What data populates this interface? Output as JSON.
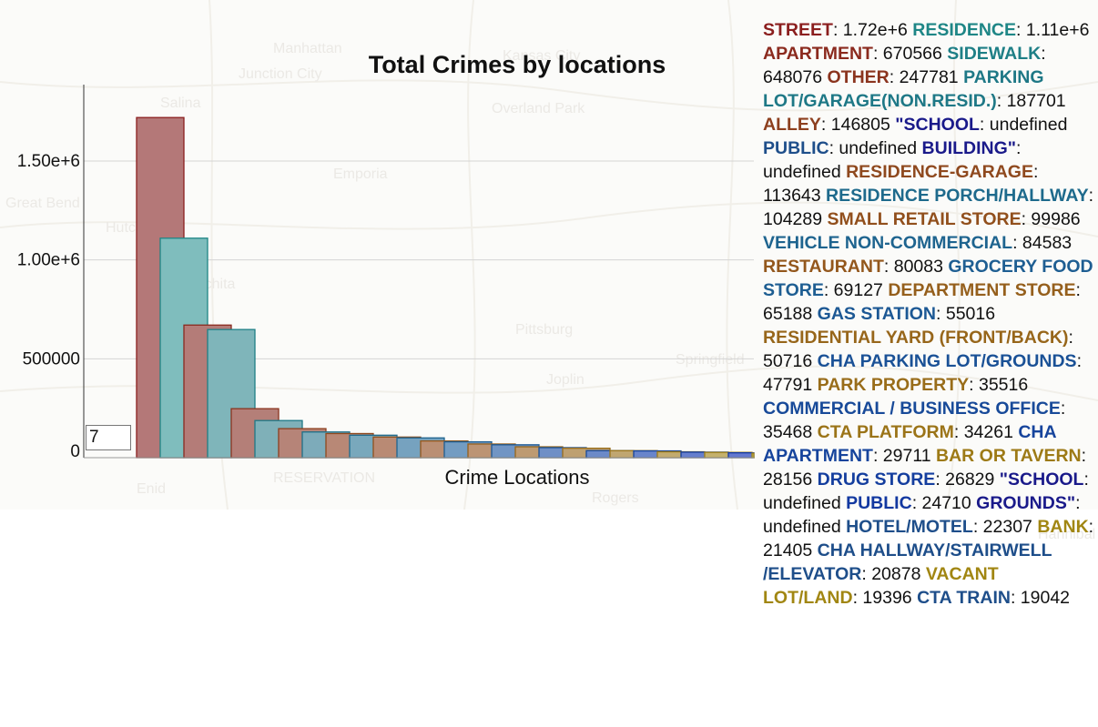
{
  "map_labels": [
    "Manhattan",
    "Junction City",
    "Salina",
    "Overland Park",
    "Kansas City",
    "Emporia",
    "Great Bend",
    "Hutchinson",
    "Wichita",
    "Pittsburg",
    "Springfield",
    "Joplin",
    "RESERVATION",
    "Enid",
    "Rogers",
    "Hannibal"
  ],
  "chart_data": {
    "type": "bar",
    "title": "Total Crimes by locations",
    "xlabel": "Crime Locations",
    "ylabel": "",
    "ylim": [
      0,
      1900000
    ],
    "y_ticks": [
      {
        "value": 0,
        "label": "0"
      },
      {
        "value": 500000,
        "label": "500000"
      },
      {
        "value": 1000000,
        "label": "1.00e+6"
      },
      {
        "value": 1500000,
        "label": "1.50e+6"
      }
    ],
    "grid": true,
    "values": [
      1720000,
      1110000,
      670566,
      648076,
      247781,
      187701,
      146805,
      130000,
      122000,
      113643,
      104289,
      99986,
      84583,
      80083,
      69127,
      65188,
      55016,
      50716,
      47791,
      35516,
      35468,
      34261,
      29711,
      28156,
      26829,
      24710,
      22307
    ],
    "colors": [
      "#b47878",
      "#7fbdbd",
      "#b47c78",
      "#7fb5ba",
      "#b47f78",
      "#7fb0b8",
      "#b68478",
      "#7dabba",
      "#b88876",
      "#79a8bc",
      "#b98a74",
      "#76a2bf",
      "#ba8f74",
      "#739cc2",
      "#bc9474",
      "#7195c4",
      "#bd9a72",
      "#6f8fc6",
      "#bea071",
      "#6c8ac8",
      "#c0a671",
      "#6985cb",
      "#c2ab6f",
      "#667fcd",
      "#c4b16d",
      "#6378cf",
      "#c6b66b"
    ],
    "stroke_colors": [
      "#8b1e1e",
      "#1e8686",
      "#8b2a1e",
      "#1e7f86",
      "#8b341e",
      "#1e7886",
      "#8d3f1e",
      "#1e6f88",
      "#8f491e",
      "#1e6a8c",
      "#914f1c",
      "#1e648f",
      "#93571c",
      "#1e5e92",
      "#955f1c",
      "#1c5894",
      "#97661a",
      "#1a5196",
      "#996d1a",
      "#184a99",
      "#9b7418",
      "#16449c",
      "#9d7a16",
      "#143e9e",
      "#9f8014",
      "#1238a0",
      "#a18612"
    ]
  },
  "bin_input_value": "7",
  "legend": [
    {
      "name": "STREET",
      "value": "1.72e+6",
      "color": "#8b1e1e"
    },
    {
      "name": "RESIDENCE",
      "value": "1.11e+6",
      "color": "#1e8686"
    },
    {
      "name": "APARTMENT",
      "value": "670566",
      "color": "#8b2a1e"
    },
    {
      "name": "SIDEWALK",
      "value": "648076",
      "color": "#1e7f86"
    },
    {
      "name": "OTHER",
      "value": "247781",
      "color": "#8b341e"
    },
    {
      "name": "PARKING LOT/GARAGE(NON.RESID.)",
      "value": "187701",
      "color": "#1e7886"
    },
    {
      "name": "ALLEY",
      "value": "146805",
      "color": "#8d3f1e"
    },
    {
      "name": "\"SCHOOL",
      "value": "undefined",
      "color": "#1a1a8a"
    },
    {
      "name": "PUBLIC",
      "value": "undefined",
      "color": "#1e4e8a"
    },
    {
      "name": "BUILDING\"",
      "value": "undefined",
      "color": "#1a1a8a"
    },
    {
      "name": "RESIDENCE-GARAGE",
      "value": "113643",
      "color": "#8f491e"
    },
    {
      "name": "RESIDENCE PORCH/HALLWAY",
      "value": "104289",
      "color": "#1e6a8c"
    },
    {
      "name": "SMALL RETAIL STORE",
      "value": "99986",
      "color": "#914f1c"
    },
    {
      "name": "VEHICLE NON-COMMERCIAL",
      "value": "84583",
      "color": "#1e648f"
    },
    {
      "name": "RESTAURANT",
      "value": "80083",
      "color": "#93571c"
    },
    {
      "name": "GROCERY FOOD STORE",
      "value": "69127",
      "color": "#1e5e92"
    },
    {
      "name": "DEPARTMENT STORE",
      "value": "65188",
      "color": "#955f1c"
    },
    {
      "name": "GAS STATION",
      "value": "55016",
      "color": "#1c5894"
    },
    {
      "name": "RESIDENTIAL YARD (FRONT/BACK)",
      "value": "50716",
      "color": "#97661a"
    },
    {
      "name": "CHA PARKING LOT/GROUNDS",
      "value": "47791",
      "color": "#1a5196"
    },
    {
      "name": "PARK PROPERTY",
      "value": "35516",
      "color": "#996d1a"
    },
    {
      "name": "COMMERCIAL / BUSINESS OFFICE",
      "value": "35468",
      "color": "#184a99"
    },
    {
      "name": "CTA PLATFORM",
      "value": "34261",
      "color": "#9b7418"
    },
    {
      "name": "CHA APARTMENT",
      "value": "29711",
      "color": "#16449c"
    },
    {
      "name": "BAR OR TAVERN",
      "value": "28156",
      "color": "#9d7a16"
    },
    {
      "name": "DRUG STORE",
      "value": "26829",
      "color": "#143e9e"
    },
    {
      "name": "\"SCHOOL",
      "value": "undefined",
      "color": "#1a1a8a"
    },
    {
      "name": "PUBLIC",
      "value": "24710",
      "color": "#1238a0"
    },
    {
      "name": "GROUNDS\"",
      "value": "undefined",
      "color": "#1a1a8a"
    },
    {
      "name": "HOTEL/MOTEL",
      "value": "22307",
      "color": "#1e4e8a"
    },
    {
      "name": "BANK",
      "value": "21405",
      "color": "#a18612"
    },
    {
      "name": "CHA HALLWAY/STAIRWELL /ELEVATOR",
      "value": "20878",
      "color": "#1e4e8a"
    },
    {
      "name": "VACANT LOT/LAND",
      "value": "19396",
      "color": "#a18612"
    },
    {
      "name": "CTA TRAIN",
      "value": "19042",
      "color": "#1e4e8a"
    }
  ]
}
